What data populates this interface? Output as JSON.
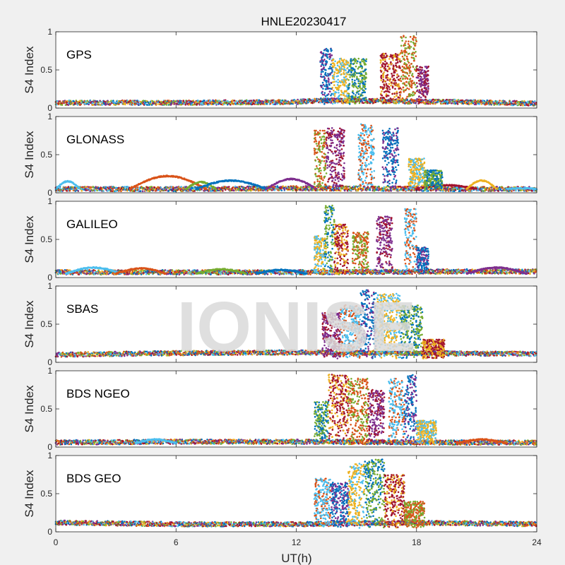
{
  "chart_data": {
    "type": "scatter",
    "title": "HNLE20230417",
    "xlabel": "UT(h)",
    "ylabel": "S4 Index",
    "xlim": [
      0,
      24
    ],
    "ylim": [
      0,
      1
    ],
    "xticks": [
      "0",
      "6",
      "12",
      "18",
      "24"
    ],
    "yticks": [
      "0",
      "0.5",
      "1"
    ],
    "watermark": "IONISE",
    "series_colors": [
      "#0072bd",
      "#d95319",
      "#edb120",
      "#7e2f8e",
      "#77ac30",
      "#4dbeee",
      "#a2142f"
    ],
    "panels": [
      {
        "label": "GPS",
        "baseline": [
          [
            0,
            0.07
          ],
          [
            6,
            0.07
          ],
          [
            12,
            0.08
          ],
          [
            13.2,
            0.1
          ],
          [
            20,
            0.08
          ],
          [
            24,
            0.06
          ]
        ],
        "activity": [
          [
            13.2,
            13.8,
            0.78
          ],
          [
            13.8,
            14.6,
            0.65
          ],
          [
            14.6,
            15.5,
            0.65
          ],
          [
            16.2,
            17.2,
            0.72
          ],
          [
            17.2,
            18.0,
            0.95
          ],
          [
            18.0,
            18.6,
            0.55
          ]
        ]
      },
      {
        "label": "GLONASS",
        "baseline": [
          [
            0,
            0.05
          ],
          [
            6,
            0.05
          ],
          [
            12,
            0.06
          ],
          [
            20,
            0.05
          ],
          [
            24,
            0.05
          ]
        ],
        "arcs": [
          [
            0,
            1.2,
            0.15
          ],
          [
            3.7,
            7.5,
            0.22
          ],
          [
            6.5,
            8.0,
            0.14
          ],
          [
            7.0,
            10.5,
            0.16
          ],
          [
            10.5,
            13.0,
            0.18
          ],
          [
            18.0,
            21.0,
            0.1
          ],
          [
            20.5,
            22.0,
            0.16
          ],
          [
            22.5,
            24.0,
            0.06
          ]
        ],
        "activity": [
          [
            12.9,
            13.5,
            0.82
          ],
          [
            13.5,
            14.4,
            0.85
          ],
          [
            15.1,
            15.9,
            0.9
          ],
          [
            16.3,
            17.1,
            0.85
          ],
          [
            17.6,
            18.4,
            0.45
          ],
          [
            18.4,
            19.3,
            0.3
          ]
        ]
      },
      {
        "label": "GALILEO",
        "baseline": [
          [
            0,
            0.07
          ],
          [
            6,
            0.07
          ],
          [
            12,
            0.07
          ],
          [
            20,
            0.08
          ],
          [
            24,
            0.08
          ]
        ],
        "arcs": [
          [
            0.5,
            3.3,
            0.13
          ],
          [
            3.0,
            5.5,
            0.12
          ],
          [
            7.0,
            9.5,
            0.11
          ],
          [
            10.0,
            12.5,
            0.1
          ],
          [
            20.5,
            23.5,
            0.13
          ]
        ],
        "activity": [
          [
            12.9,
            13.5,
            0.55
          ],
          [
            13.4,
            13.9,
            0.95
          ],
          [
            13.9,
            14.6,
            0.7
          ],
          [
            14.8,
            15.6,
            0.6
          ],
          [
            16.0,
            16.8,
            0.8
          ],
          [
            17.4,
            18.0,
            0.9
          ],
          [
            18.0,
            18.6,
            0.4
          ]
        ]
      },
      {
        "label": "SBAS",
        "baseline": [
          [
            0,
            0.1
          ],
          [
            6,
            0.12
          ],
          [
            12,
            0.13
          ],
          [
            18,
            0.12
          ],
          [
            24,
            0.11
          ]
        ],
        "activity": [
          [
            13.3,
            14.2,
            0.65
          ],
          [
            14.2,
            15.2,
            0.75
          ],
          [
            15.2,
            16.0,
            0.95
          ],
          [
            16.0,
            17.2,
            0.9
          ],
          [
            17.2,
            18.3,
            0.75
          ],
          [
            18.3,
            19.4,
            0.3
          ]
        ]
      },
      {
        "label": "BDS NGEO",
        "baseline": [
          [
            0,
            0.06
          ],
          [
            6,
            0.07
          ],
          [
            12,
            0.07
          ],
          [
            19,
            0.06
          ],
          [
            24,
            0.06
          ]
        ],
        "arcs": [
          [
            4.0,
            6.0,
            0.1
          ],
          [
            20.0,
            22.5,
            0.1
          ]
        ],
        "activity": [
          [
            12.9,
            13.6,
            0.6
          ],
          [
            13.6,
            14.6,
            0.95
          ],
          [
            14.6,
            15.6,
            0.9
          ],
          [
            15.6,
            16.4,
            0.75
          ],
          [
            16.6,
            17.4,
            0.9
          ],
          [
            17.4,
            18.0,
            0.95
          ],
          [
            18.0,
            19.0,
            0.35
          ]
        ]
      },
      {
        "label": "BDS GEO",
        "baseline": [
          [
            0,
            0.12
          ],
          [
            6,
            0.1
          ],
          [
            12,
            0.1
          ],
          [
            18,
            0.12
          ],
          [
            24,
            0.1
          ]
        ],
        "activity": [
          [
            12.9,
            13.7,
            0.7
          ],
          [
            13.7,
            14.6,
            0.65
          ],
          [
            14.6,
            15.4,
            0.9
          ],
          [
            15.4,
            16.4,
            0.95
          ],
          [
            16.4,
            17.4,
            0.75
          ],
          [
            17.4,
            18.4,
            0.4
          ]
        ]
      }
    ]
  }
}
